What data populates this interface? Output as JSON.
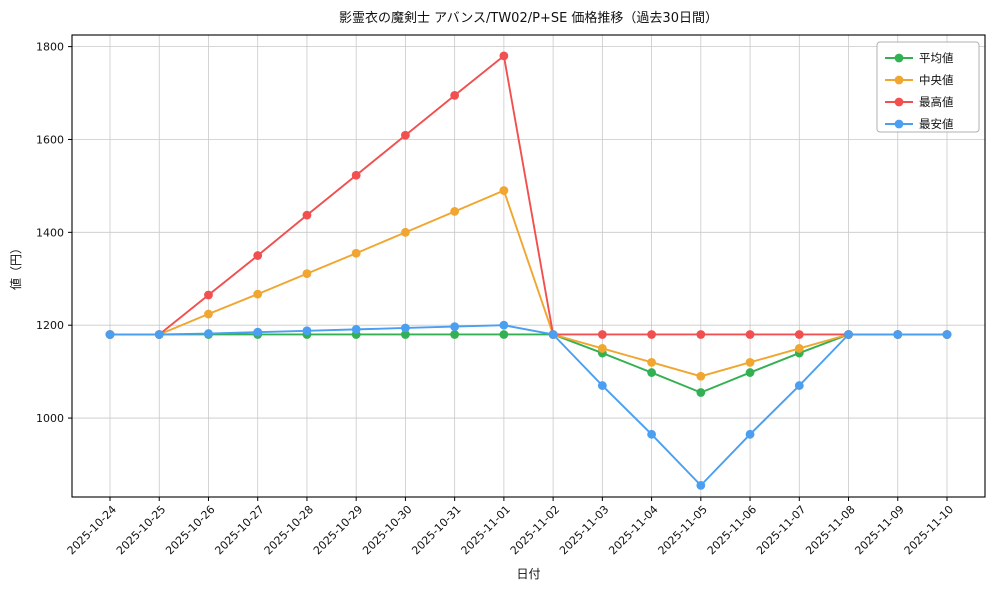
{
  "chart": {
    "title": "影霊衣の魔剣士 アバンス/TW02/P+SE 価格推移（過去30日間）",
    "xlabel": "日付",
    "ylabel": "値（円）"
  },
  "chart_data": {
    "type": "line",
    "x": [
      "2025-10-24",
      "2025-10-25",
      "2025-10-26",
      "2025-10-27",
      "2025-10-28",
      "2025-10-29",
      "2025-10-30",
      "2025-10-31",
      "2025-11-01",
      "2025-11-02",
      "2025-11-03",
      "2025-11-04",
      "2025-11-05",
      "2025-11-06",
      "2025-11-07",
      "2025-11-08",
      "2025-11-09",
      "2025-11-10"
    ],
    "series": [
      {
        "key": "mean",
        "name": "平均値",
        "color": "#33b152",
        "values": [
          1180,
          1180,
          1180,
          1180,
          1180,
          1180,
          1180,
          1180,
          1180,
          1180,
          1140,
          1098,
          1055,
          1098,
          1140,
          1180,
          1180,
          1180
        ]
      },
      {
        "key": "median",
        "name": "中央値",
        "color": "#f0a62f",
        "values": [
          1180,
          1180,
          1224,
          1267,
          1311,
          1355,
          1400,
          1445,
          1490,
          1180,
          1150,
          1120,
          1090,
          1120,
          1150,
          1180,
          1180,
          1180
        ]
      },
      {
        "key": "max",
        "name": "最高値",
        "color": "#f25050",
        "values": [
          1180,
          1180,
          1265,
          1350,
          1437,
          1523,
          1609,
          1695,
          1780,
          1180,
          1180,
          1180,
          1180,
          1180,
          1180,
          1180,
          1180,
          1180
        ]
      },
      {
        "key": "min",
        "name": "最安値",
        "color": "#4a9ff0",
        "values": [
          1180,
          1180,
          1182,
          1185,
          1188,
          1191,
          1194,
          1197,
          1200,
          1180,
          1070,
          965,
          855,
          965,
          1070,
          1180,
          1180,
          1180
        ]
      }
    ],
    "title": "影霊衣の魔剣士 アバンス/TW02/P+SE 価格推移（過去30日間）",
    "xlabel": "日付",
    "ylabel": "値（円）",
    "ylim": [
      830,
      1825
    ],
    "yticks": [
      1000,
      1200,
      1400,
      1600,
      1800
    ],
    "grid": true,
    "legend_position": "top-right",
    "grid_color": "#c9c9c9",
    "axis_color": "#000000",
    "background_color": "#ffffff"
  }
}
